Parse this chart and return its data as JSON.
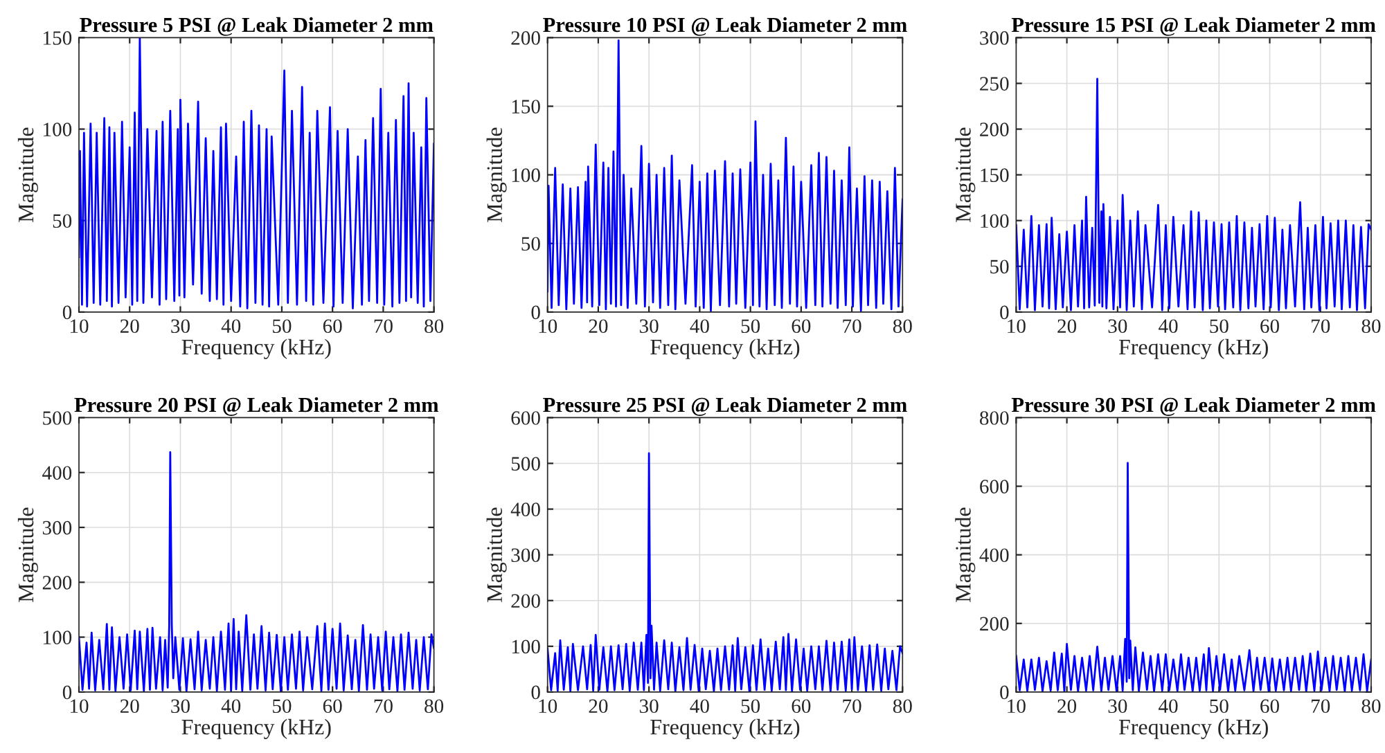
{
  "chart_data": [
    {
      "type": "line",
      "title": "Pressure 5 PSI @ Leak Diameter 2 mm",
      "xlabel": "Frequency (kHz)",
      "ylabel": "Magnitude",
      "color": "#0000ff",
      "grid": true,
      "xlim": [
        10,
        80
      ],
      "ylim": [
        0,
        150
      ],
      "xticks": [
        10,
        20,
        30,
        40,
        50,
        60,
        70,
        80
      ],
      "yticks": [
        0,
        50,
        100,
        150
      ],
      "x": [
        10,
        10.2,
        10.6,
        11,
        11.6,
        12.3,
        12.9,
        13.5,
        14.2,
        15,
        15.5,
        16,
        16.5,
        17,
        17.8,
        18.5,
        19.2,
        20,
        20.5,
        21,
        21.5,
        22,
        22.7,
        23.5,
        24.4,
        25.3,
        25.9,
        26.5,
        27.2,
        28,
        28.8,
        29.5,
        29.8,
        30,
        30.8,
        31.5,
        32.5,
        33.5,
        34.2,
        35,
        35.8,
        36.5,
        37.2,
        38,
        38.5,
        39,
        40,
        41,
        41.8,
        42.5,
        43.2,
        44,
        44.8,
        45.5,
        46.2,
        47,
        47.5,
        48,
        49.3,
        50.5,
        51.2,
        52,
        53,
        54,
        54.8,
        55.5,
        56.2,
        57,
        58.2,
        59.5,
        60.2,
        61,
        62,
        63,
        64,
        65,
        65.8,
        66.5,
        67.2,
        68,
        68.8,
        69.5,
        70.2,
        71,
        71.8,
        72.5,
        73.2,
        74,
        74.5,
        75,
        75.5,
        76,
        76.8,
        77.5,
        78,
        78.5,
        79.3,
        80
      ],
      "values": [
        30,
        88,
        4,
        98,
        3,
        103,
        5,
        98,
        4,
        106,
        6,
        101,
        3,
        98,
        5,
        104,
        8,
        90,
        4,
        109,
        6,
        150,
        5,
        100,
        8,
        99,
        4,
        104,
        7,
        110,
        6,
        100,
        9,
        116,
        8,
        103,
        15,
        115,
        10,
        95,
        6,
        88,
        7,
        101,
        4,
        103,
        6,
        85,
        3,
        104,
        2,
        110,
        5,
        102,
        4,
        100,
        3,
        96,
        4,
        132,
        5,
        110,
        4,
        123,
        6,
        98,
        4,
        110,
        5,
        112,
        3,
        99,
        5,
        100,
        2,
        85,
        4,
        94,
        6,
        106,
        5,
        122,
        4,
        98,
        3,
        105,
        5,
        118,
        6,
        125,
        8,
        98,
        5,
        90,
        3,
        117,
        6,
        92
      ]
    },
    {
      "type": "line",
      "title": "Pressure 10 PSI @ Leak Diameter 2 mm",
      "xlabel": "Frequency (kHz)",
      "ylabel": "Magnitude",
      "color": "#0000ff",
      "grid": true,
      "xlim": [
        10,
        80
      ],
      "ylim": [
        0,
        200
      ],
      "xticks": [
        10,
        20,
        30,
        40,
        50,
        60,
        70,
        80
      ],
      "yticks": [
        0,
        50,
        100,
        150,
        200
      ],
      "x": [
        10,
        10.2,
        10.8,
        11.5,
        12.2,
        13,
        13.7,
        14.5,
        15.2,
        16,
        16.7,
        17.5,
        17.8,
        18,
        18.8,
        19.5,
        20.2,
        21,
        21.5,
        22,
        22.5,
        23,
        23.5,
        24,
        24.5,
        25,
        25.8,
        26.5,
        27.5,
        28.5,
        29.2,
        30,
        30.8,
        31.5,
        32.2,
        33,
        33.8,
        34.5,
        35.2,
        36,
        37.2,
        38.5,
        39.2,
        40,
        40.8,
        41.5,
        42.2,
        43,
        44,
        45,
        45.8,
        46.5,
        47.2,
        48,
        49,
        50,
        50.5,
        51,
        51.8,
        52.5,
        53.2,
        54,
        54.8,
        55.5,
        56.2,
        57,
        57.8,
        58.5,
        59.2,
        60,
        61,
        62,
        62.8,
        63.5,
        64.2,
        65,
        65.8,
        66.5,
        67.2,
        68,
        68.8,
        69.5,
        70.2,
        71,
        71.8,
        72.5,
        73.2,
        74,
        74.8,
        75.5,
        76.2,
        77,
        77.8,
        78.5,
        79.2,
        80
      ],
      "values": [
        15,
        92,
        3,
        105,
        5,
        93,
        2,
        90,
        6,
        91,
        3,
        95,
        7,
        106,
        4,
        122,
        5,
        109,
        2,
        105,
        6,
        117,
        4,
        198,
        5,
        100,
        3,
        90,
        6,
        121,
        4,
        108,
        7,
        100,
        3,
        105,
        5,
        114,
        2,
        96,
        6,
        107,
        4,
        95,
        3,
        101,
        1,
        103,
        5,
        110,
        4,
        101,
        6,
        104,
        3,
        109,
        5,
        139,
        4,
        100,
        2,
        108,
        5,
        96,
        3,
        127,
        6,
        106,
        4,
        95,
        3,
        107,
        5,
        116,
        4,
        113,
        6,
        103,
        3,
        96,
        5,
        120,
        4,
        90,
        1,
        99,
        5,
        96,
        3,
        95,
        6,
        88,
        2,
        105,
        4,
        82
      ]
    },
    {
      "type": "line",
      "title": "Pressure 15 PSI @ Leak Diameter 2 mm",
      "xlabel": "Frequency (kHz)",
      "ylabel": "Magnitude",
      "color": "#0000ff",
      "grid": true,
      "xlim": [
        10,
        80
      ],
      "ylim": [
        0,
        300
      ],
      "xticks": [
        10,
        20,
        30,
        40,
        50,
        60,
        70,
        80
      ],
      "yticks": [
        0,
        50,
        100,
        150,
        200,
        250,
        300
      ],
      "x": [
        10,
        10.7,
        11.5,
        12.2,
        13,
        13.7,
        14.5,
        15.2,
        16,
        16.5,
        17,
        17.8,
        18.5,
        19.2,
        20,
        20.8,
        21.5,
        22.2,
        23,
        23.4,
        23.8,
        24.4,
        25,
        25.5,
        26,
        26.4,
        26.8,
        27,
        27.2,
        27.8,
        28.5,
        29.2,
        30,
        30.5,
        31,
        31.8,
        32.5,
        33.2,
        34,
        34.8,
        35.5,
        36.8,
        38,
        38.8,
        39.5,
        40.2,
        41,
        42,
        43,
        43.8,
        44.5,
        45.2,
        46,
        46.8,
        47.5,
        48.2,
        49,
        49.8,
        50.5,
        51.2,
        52,
        52.8,
        53.5,
        54.2,
        55,
        55.8,
        56.5,
        57.2,
        58,
        58.8,
        59.5,
        60.2,
        61,
        61.8,
        62.5,
        63.2,
        64,
        65,
        66,
        66.8,
        67.5,
        68.2,
        69,
        69.8,
        70.5,
        71.2,
        72,
        72.8,
        73.5,
        74.2,
        75,
        75.8,
        76.5,
        77.2,
        78,
        78.8,
        79.5,
        80
      ],
      "values": [
        95,
        3,
        90,
        5,
        105,
        2,
        95,
        6,
        96,
        4,
        103,
        3,
        85,
        5,
        88,
        2,
        95,
        6,
        100,
        4,
        126,
        5,
        92,
        7,
        255,
        10,
        110,
        6,
        118,
        4,
        104,
        3,
        100,
        5,
        128,
        2,
        100,
        6,
        110,
        3,
        95,
        5,
        117,
        2,
        95,
        4,
        104,
        6,
        95,
        3,
        110,
        5,
        109,
        2,
        100,
        4,
        98,
        6,
        96,
        3,
        98,
        5,
        105,
        2,
        98,
        4,
        92,
        6,
        96,
        3,
        105,
        5,
        103,
        2,
        90,
        4,
        95,
        6,
        120,
        3,
        92,
        5,
        95,
        2,
        104,
        4,
        97,
        6,
        100,
        3,
        100,
        5,
        95,
        2,
        93,
        4,
        96,
        90
      ]
    },
    {
      "type": "line",
      "title": "Pressure 20 PSI @ Leak Diameter 2 mm",
      "xlabel": "Frequency (kHz)",
      "ylabel": "Magnitude",
      "color": "#0000ff",
      "grid": true,
      "xlim": [
        10,
        80
      ],
      "ylim": [
        0,
        500
      ],
      "xticks": [
        10,
        20,
        30,
        40,
        50,
        60,
        70,
        80
      ],
      "yticks": [
        0,
        100,
        200,
        300,
        400,
        500
      ],
      "x": [
        10,
        10.7,
        11.5,
        12,
        12.5,
        13.2,
        14,
        14.8,
        15.5,
        16,
        16.5,
        17.2,
        18,
        18.8,
        19.5,
        20.2,
        21,
        21.5,
        22,
        22.8,
        23.5,
        24,
        24.5,
        25.2,
        26,
        26.5,
        27,
        27.5,
        27.8,
        28,
        28.3,
        28.6,
        29,
        29.8,
        30.5,
        31.2,
        32,
        32.8,
        33.5,
        34.2,
        35,
        35.8,
        36.5,
        37.2,
        38,
        38.8,
        39.5,
        40,
        40.5,
        41,
        41.5,
        42.2,
        43,
        43.8,
        44.5,
        45.2,
        46,
        46.8,
        47.5,
        48.2,
        49,
        49.8,
        50.5,
        51.2,
        52,
        52.8,
        53.5,
        54.2,
        55,
        56,
        57,
        57.8,
        58.5,
        59.2,
        60,
        60.8,
        61.5,
        62.2,
        63,
        63.8,
        64.5,
        65.2,
        66,
        66.8,
        67.5,
        68.2,
        69,
        69.8,
        70.5,
        71.2,
        72,
        72.8,
        73.5,
        74.2,
        75,
        75.8,
        76.5,
        77.2,
        78,
        78.8,
        79.5,
        80
      ],
      "values": [
        100,
        4,
        90,
        6,
        108,
        3,
        95,
        5,
        124,
        4,
        118,
        2,
        100,
        6,
        105,
        3,
        112,
        5,
        110,
        2,
        115,
        4,
        117,
        6,
        100,
        3,
        95,
        8,
        120,
        437,
        125,
        25,
        100,
        4,
        98,
        2,
        96,
        5,
        110,
        3,
        95,
        6,
        100,
        2,
        110,
        4,
        125,
        3,
        133,
        5,
        110,
        2,
        140,
        4,
        105,
        6,
        120,
        3,
        108,
        5,
        104,
        2,
        100,
        4,
        105,
        6,
        110,
        3,
        100,
        5,
        120,
        2,
        125,
        4,
        115,
        6,
        125,
        3,
        103,
        5,
        95,
        2,
        122,
        4,
        105,
        6,
        100,
        3,
        110,
        5,
        100,
        2,
        105,
        4,
        108,
        6,
        95,
        3,
        100,
        5,
        105,
        80
      ]
    },
    {
      "type": "line",
      "title": "Pressure 25 PSI @ Leak Diameter 2 mm",
      "xlabel": "Frequency (kHz)",
      "ylabel": "Magnitude",
      "color": "#0000ff",
      "grid": true,
      "xlim": [
        10,
        80
      ],
      "ylim": [
        0,
        600
      ],
      "xticks": [
        10,
        20,
        30,
        40,
        50,
        60,
        70,
        80
      ],
      "yticks": [
        0,
        100,
        200,
        300,
        400,
        500,
        600
      ],
      "x": [
        10,
        10.7,
        11.5,
        12,
        12.5,
        13.2,
        14,
        14.5,
        15,
        16,
        17,
        17.8,
        18.5,
        19,
        19.5,
        20.2,
        21,
        21.8,
        22.5,
        23.2,
        24,
        24.8,
        25.5,
        26.2,
        27,
        27.8,
        28.5,
        29,
        29.5,
        29.8,
        30,
        30.3,
        30.5,
        31,
        31.5,
        32.2,
        33,
        33.8,
        34.5,
        35.2,
        36,
        36.8,
        37.5,
        38.2,
        39,
        39.8,
        40.5,
        41.2,
        42,
        42.8,
        43.5,
        44.2,
        45,
        45.8,
        46.5,
        47,
        47.5,
        48.2,
        49,
        49.8,
        50.5,
        51.2,
        52,
        52.8,
        53.5,
        54.2,
        55,
        55.8,
        56.5,
        57,
        57.5,
        58.2,
        59,
        59.8,
        60.5,
        61.2,
        62,
        62.8,
        63.5,
        64.2,
        65,
        65.8,
        66.5,
        67.2,
        68,
        68.8,
        69.5,
        70,
        70.5,
        71.2,
        72,
        72.8,
        73.5,
        74.2,
        75,
        75.8,
        76.5,
        77.2,
        78,
        78.8,
        79.5,
        80
      ],
      "values": [
        95,
        4,
        85,
        3,
        113,
        5,
        98,
        2,
        105,
        4,
        100,
        6,
        103,
        3,
        125,
        5,
        98,
        2,
        100,
        4,
        102,
        6,
        105,
        3,
        108,
        5,
        108,
        4,
        125,
        20,
        522,
        30,
        145,
        5,
        108,
        3,
        113,
        6,
        108,
        2,
        98,
        4,
        118,
        5,
        103,
        3,
        95,
        6,
        90,
        2,
        95,
        4,
        100,
        5,
        102,
        3,
        118,
        6,
        98,
        2,
        102,
        4,
        115,
        5,
        95,
        3,
        110,
        6,
        120,
        4,
        127,
        2,
        115,
        5,
        95,
        3,
        100,
        6,
        100,
        4,
        112,
        2,
        108,
        5,
        110,
        3,
        115,
        6,
        120,
        4,
        100,
        2,
        102,
        5,
        104,
        3,
        95,
        6,
        90,
        4,
        100,
        85
      ]
    },
    {
      "type": "line",
      "title": "Pressure 30 PSI @ Leak Diameter 2 mm",
      "xlabel": "Frequency (kHz)",
      "ylabel": "Magnitude",
      "color": "#0000ff",
      "grid": true,
      "xlim": [
        10,
        80
      ],
      "ylim": [
        0,
        800
      ],
      "xticks": [
        10,
        20,
        30,
        40,
        50,
        60,
        70,
        80
      ],
      "yticks": [
        0,
        200,
        400,
        600,
        800
      ],
      "x": [
        10,
        10.7,
        11.5,
        12.2,
        13,
        13.7,
        14.5,
        15.2,
        16,
        16.8,
        17.5,
        18.2,
        19,
        19.5,
        20,
        20.8,
        21.5,
        22.2,
        23,
        23.8,
        24.5,
        25.2,
        26,
        26.8,
        27.5,
        28.2,
        29,
        29.8,
        30.5,
        31,
        31.5,
        31.8,
        32,
        32.3,
        32.5,
        33,
        33.5,
        34.2,
        35,
        35.8,
        36.5,
        37.2,
        38,
        38.8,
        39.5,
        40.2,
        41,
        41.8,
        42.5,
        43.2,
        44,
        44.8,
        45.5,
        46.2,
        47,
        47.5,
        48,
        48.8,
        49.5,
        50.2,
        51,
        51.8,
        52.5,
        53.2,
        54,
        55,
        56,
        56.8,
        57.5,
        58.2,
        59,
        59.8,
        60.5,
        61.2,
        62,
        62.8,
        63.5,
        64.2,
        65,
        65.8,
        66.5,
        67.2,
        68,
        68.8,
        69.5,
        70.2,
        71,
        71.8,
        72.5,
        73.2,
        74,
        74.8,
        75.5,
        76.2,
        77,
        77.8,
        78.5,
        79.2,
        80
      ],
      "values": [
        105,
        5,
        95,
        3,
        95,
        6,
        100,
        2,
        90,
        4,
        115,
        5,
        112,
        3,
        140,
        6,
        105,
        2,
        100,
        4,
        105,
        5,
        132,
        3,
        100,
        6,
        105,
        2,
        105,
        4,
        155,
        30,
        668,
        40,
        150,
        5,
        130,
        3,
        115,
        6,
        105,
        2,
        110,
        4,
        110,
        5,
        95,
        3,
        110,
        6,
        100,
        2,
        100,
        4,
        110,
        5,
        128,
        3,
        105,
        6,
        110,
        2,
        95,
        4,
        105,
        5,
        122,
        3,
        100,
        6,
        100,
        2,
        98,
        4,
        95,
        5,
        100,
        3,
        100,
        6,
        105,
        2,
        112,
        4,
        118,
        5,
        100,
        3,
        105,
        6,
        100,
        2,
        105,
        4,
        100,
        5,
        110,
        3,
        95
      ]
    }
  ]
}
